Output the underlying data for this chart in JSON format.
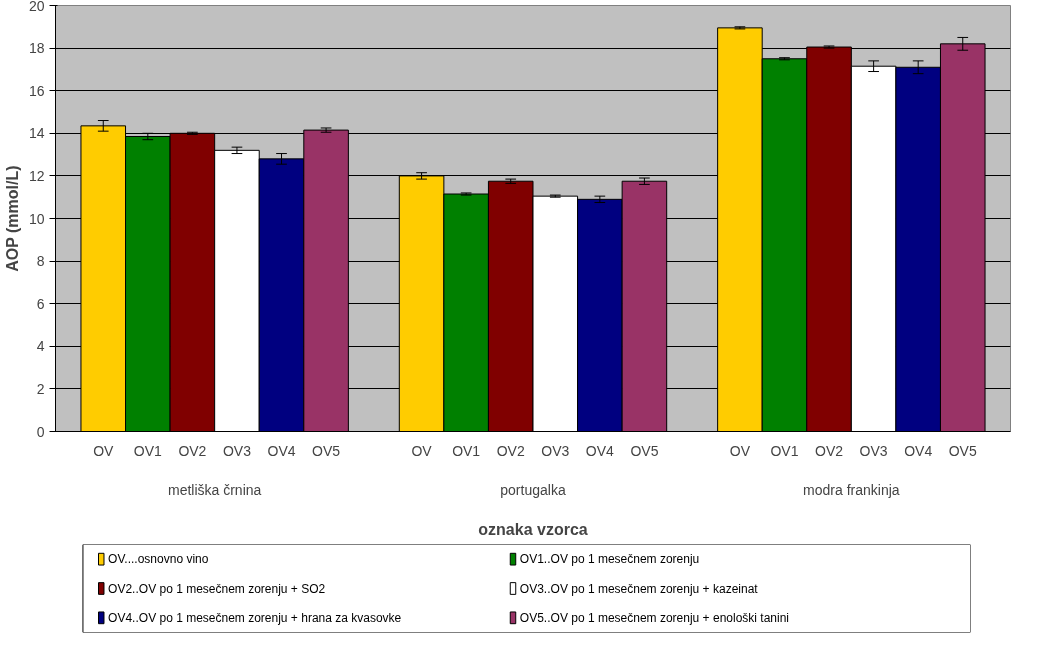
{
  "chart_data": {
    "type": "bar",
    "xlabel": "oznaka vzorca",
    "ylabel": "AOP (mmol/L)",
    "categories": [
      "metliška črnina",
      "portugalka",
      "modra frankinja"
    ],
    "series": [
      {
        "name": "OV....osnovno vino",
        "color": "#ffcc00",
        "values": [
          14.35,
          12.0,
          18.95
        ],
        "errors": [
          0.25,
          0.15,
          0.05
        ]
      },
      {
        "name": "OV1..OV po 1 mesečnem zorenju",
        "color": "#008000",
        "values": [
          13.85,
          11.15,
          17.5
        ],
        "errors": [
          0.15,
          0.05,
          0.05
        ]
      },
      {
        "name": "OV2..OV po 1 mesečnem zorenju + SO2",
        "color": "#800000",
        "values": [
          14.0,
          11.75,
          18.05
        ],
        "errors": [
          0.05,
          0.1,
          0.05
        ]
      },
      {
        "name": "OV3..OV po 1 mesečnem zorenju + kazeinat",
        "color": "#ffffff",
        "values": [
          13.2,
          11.05,
          17.15
        ],
        "errors": [
          0.15,
          0.05,
          0.25
        ]
      },
      {
        "name": "OV4..OV po 1 mesečnem zorenju + hrana za kvasovke",
        "color": "#000080",
        "values": [
          12.8,
          10.9,
          17.1
        ],
        "errors": [
          0.25,
          0.15,
          0.3
        ]
      },
      {
        "name": "OV5..OV po 1 mesečnem zorenju + enološki tanini",
        "color": "#993366",
        "values": [
          14.15,
          11.75,
          18.2
        ],
        "errors": [
          0.1,
          0.15,
          0.3
        ]
      }
    ],
    "annotations": [
      "OV",
      "OV1",
      "OV2",
      "OV3",
      "OV4",
      "OV5",
      "OV",
      "OV1",
      "OV2",
      "OV3",
      "OV4",
      "OV5",
      "OV",
      "OV1",
      "OV2",
      "OV3",
      "OV4",
      "OV5"
    ],
    "ylim": [
      0,
      20
    ],
    "yticks": [
      0,
      2,
      4,
      6,
      8,
      10,
      12,
      14,
      16,
      18,
      20
    ],
    "grid": "y",
    "legend": "bottom"
  }
}
